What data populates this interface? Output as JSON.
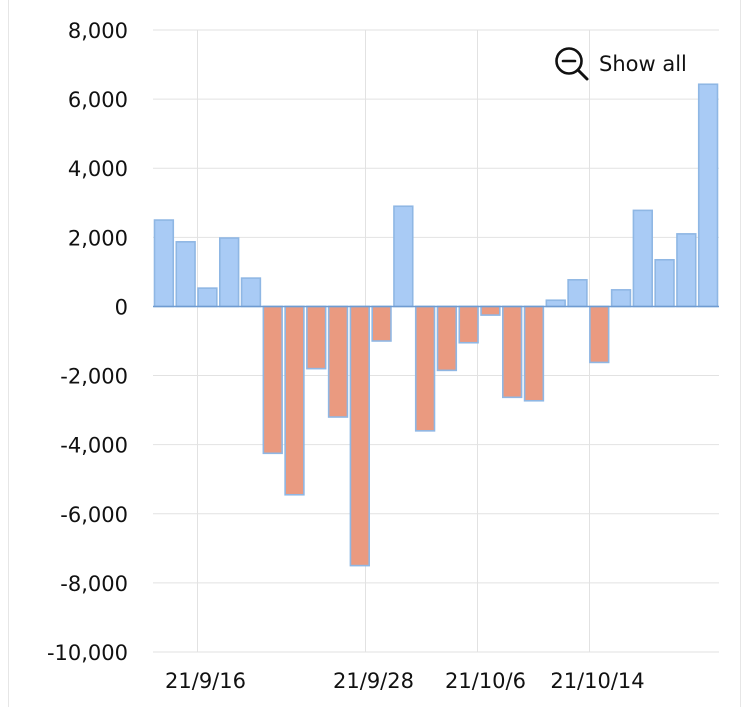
{
  "show_all_button": {
    "label": "Show all",
    "icon": "zoom-out-icon"
  },
  "chart_data": {
    "type": "bar",
    "title": "",
    "xlabel": "",
    "ylabel": "",
    "ylim": [
      -10000,
      8000
    ],
    "yticks": [
      8000,
      6000,
      4000,
      2000,
      0,
      -2000,
      -4000,
      -6000,
      -8000,
      -10000
    ],
    "ytick_labels": [
      "8,000",
      "6,000",
      "4,000",
      "2,000",
      "0",
      "-2,000",
      "-4,000",
      "-6,000",
      "-8,000",
      "-10,000"
    ],
    "x_tick_labels": [
      {
        "label": "21/9/16",
        "date": "2021-09-16"
      },
      {
        "label": "21/9/28",
        "date": "2021-09-28"
      },
      {
        "label": "21/10/6",
        "date": "2021-10-06"
      },
      {
        "label": "21/10/14",
        "date": "2021-10-14"
      }
    ],
    "grid": true,
    "positive_color": "#a9cbf5",
    "negative_color": "#ea9a80",
    "bar_edge_color": "#8fb7e4",
    "bars": [
      {
        "date": "2021-09-13",
        "value": 2500
      },
      {
        "date": "2021-09-14",
        "value": 1870
      },
      {
        "date": "2021-09-15",
        "value": 530
      },
      {
        "date": "2021-09-16",
        "value": 1980
      },
      {
        "date": "2021-09-17",
        "value": 820
      },
      {
        "date": "2021-09-20",
        "value": -4250
      },
      {
        "date": "2021-09-22",
        "value": -5450
      },
      {
        "date": "2021-09-23",
        "value": -1800
      },
      {
        "date": "2021-09-24",
        "value": -3200
      },
      {
        "date": "2021-09-27",
        "value": -7500
      },
      {
        "date": "2021-09-28",
        "value": -1000
      },
      {
        "date": "2021-09-29",
        "value": 2900
      },
      {
        "date": "2021-09-30",
        "value": -3600
      },
      {
        "date": "2021-10-01",
        "value": -1850
      },
      {
        "date": "2021-10-04",
        "value": -1050
      },
      {
        "date": "2021-10-05",
        "value": -250
      },
      {
        "date": "2021-10-06",
        "value": -2630
      },
      {
        "date": "2021-10-07",
        "value": -2730
      },
      {
        "date": "2021-10-08",
        "value": 180
      },
      {
        "date": "2021-10-11",
        "value": 770
      },
      {
        "date": "2021-10-12",
        "value": -1620
      },
      {
        "date": "2021-10-13",
        "value": 480
      },
      {
        "date": "2021-10-14",
        "value": 2780
      },
      {
        "date": "2021-10-15",
        "value": 1350
      },
      {
        "date": "2021-10-18",
        "value": 2100
      },
      {
        "date": "2021-10-19",
        "value": 6430
      }
    ]
  }
}
